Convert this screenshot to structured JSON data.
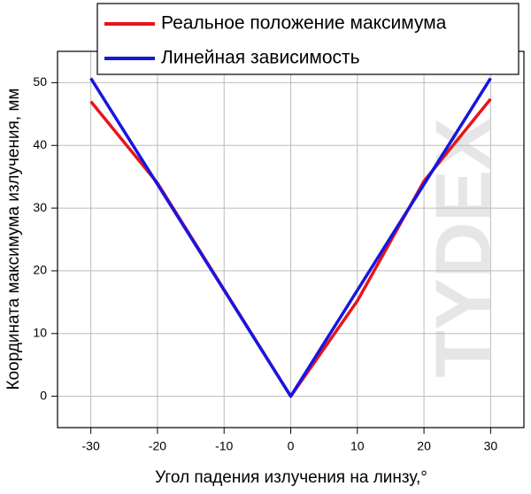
{
  "chart_data": {
    "type": "line",
    "x_label": "Угол падения излучения на линзу,°",
    "y_label": "Координата максимума излучения, мм",
    "watermark": "TYDEX",
    "x": [
      -30,
      -20,
      -10,
      0,
      10,
      20,
      30
    ],
    "series": [
      {
        "name": "Реальное положение максимума",
        "color": "#e8141c",
        "values": [
          47,
          34,
          17,
          0,
          15.2,
          34.3,
          47.4
        ]
      },
      {
        "name": "Линейная зависимость",
        "color": "#1616e0",
        "values": [
          50.7,
          33.8,
          16.9,
          0,
          16.9,
          33.8,
          50.7
        ]
      }
    ],
    "xlim": [
      -35,
      35
    ],
    "xticks": [
      -30,
      -20,
      -10,
      0,
      10,
      20,
      30
    ],
    "ylim": [
      -5,
      55
    ],
    "yticks": [
      0,
      10,
      20,
      30,
      40,
      50
    ],
    "grid": true,
    "legend": "top-right"
  }
}
